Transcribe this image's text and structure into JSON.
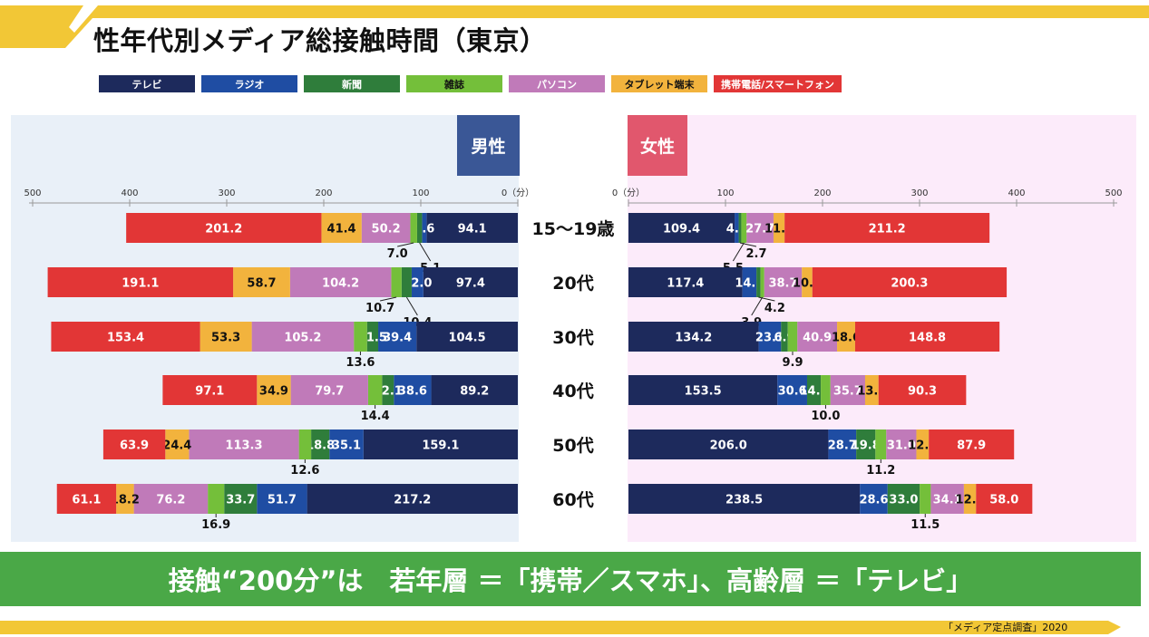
{
  "title": "性年代別メディア総接触時間（東京）",
  "media": [
    {
      "name": "テレビ",
      "color": "#1d2a5c",
      "text": "#ffffff"
    },
    {
      "name": "ラジオ",
      "color": "#1f4da3",
      "text": "#ffffff"
    },
    {
      "name": "新聞",
      "color": "#2f7d3b",
      "text": "#ffffff"
    },
    {
      "name": "雑誌",
      "color": "#74bf3a",
      "text": "#111111"
    },
    {
      "name": "パソコン",
      "color": "#c07ab9",
      "text": "#ffffff"
    },
    {
      "name": "タブレット端末",
      "color": "#f2b33d",
      "text": "#111111"
    },
    {
      "name": "携帯電話/スマートフォン",
      "color": "#e23636",
      "text": "#ffffff"
    }
  ],
  "panels": {
    "male": "男性",
    "female": "女性"
  },
  "axis": {
    "male_ticks": [
      "500",
      "400",
      "300",
      "200",
      "100",
      "0（分）"
    ],
    "female_ticks": [
      "0（分）",
      "100",
      "200",
      "300",
      "400",
      "500"
    ]
  },
  "chart_data": {
    "type": "bar",
    "orientation": "horizontal-stacked-butterfly",
    "unit": "分",
    "categories": [
      "15〜19歳",
      "20代",
      "30代",
      "40代",
      "50代",
      "60代"
    ],
    "series_order": [
      "テレビ",
      "ラジオ",
      "新聞",
      "雑誌",
      "パソコン",
      "タブレット端末",
      "携帯電話/スマートフォン"
    ],
    "xlim": [
      0,
      500
    ],
    "male": [
      [
        94.1,
        4.6,
        5.1,
        7.0,
        50.2,
        41.4,
        201.2
      ],
      [
        97.4,
        12.0,
        10.4,
        10.7,
        104.2,
        58.7,
        191.1
      ],
      [
        104.5,
        39.4,
        11.5,
        13.6,
        105.2,
        53.3,
        153.4
      ],
      [
        89.2,
        38.6,
        12.1,
        14.4,
        79.7,
        34.9,
        97.1
      ],
      [
        159.1,
        35.1,
        18.8,
        12.6,
        113.3,
        24.4,
        63.9
      ],
      [
        217.2,
        51.7,
        33.7,
        16.9,
        76.2,
        18.2,
        61.1
      ]
    ],
    "female": [
      [
        109.4,
        4.2,
        2.7,
        5.5,
        27.7,
        11.4,
        211.2
      ],
      [
        117.4,
        14.5,
        4.2,
        3.9,
        38.7,
        10.8,
        200.3
      ],
      [
        134.2,
        23.1,
        6.9,
        9.9,
        40.9,
        18.6,
        148.8
      ],
      [
        153.5,
        30.6,
        14.1,
        10.0,
        35.7,
        13.8,
        90.3
      ],
      [
        206.0,
        28.7,
        19.8,
        11.2,
        31.0,
        12.8,
        87.9
      ],
      [
        238.5,
        28.6,
        33.0,
        11.5,
        34.1,
        12.5,
        58.0
      ]
    ]
  },
  "banner": "接触“200分”は　若年層 ＝「携帯／スマホ」、高齢層 ＝「テレビ」",
  "source": "「メディア定点調査」2020"
}
